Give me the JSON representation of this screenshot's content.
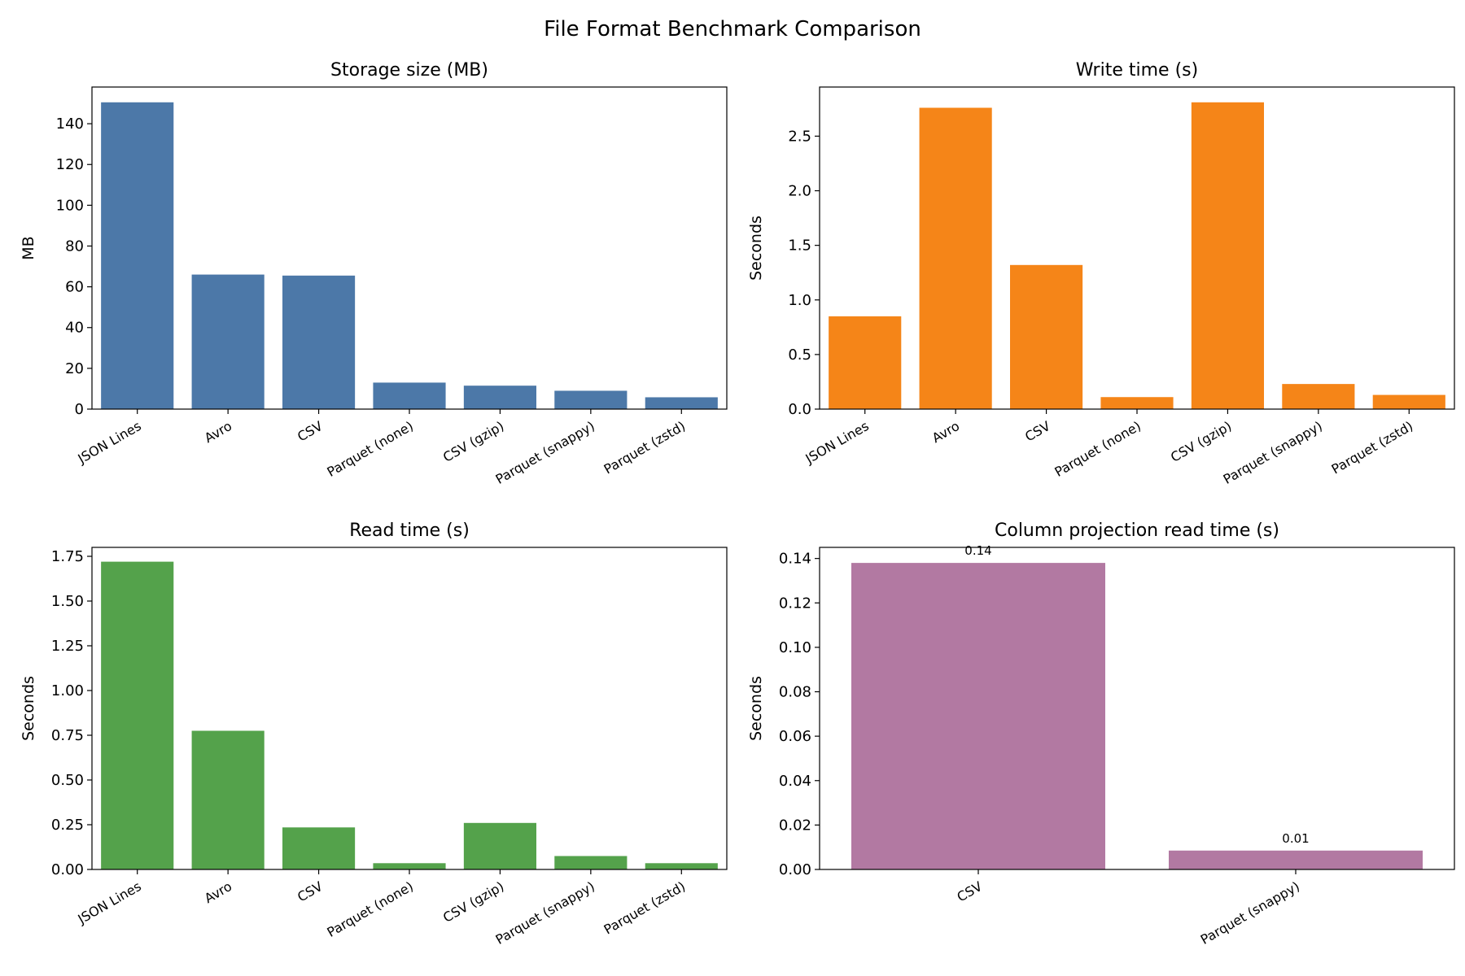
{
  "figure_title": "File Format Benchmark Comparison",
  "chart_data": [
    {
      "type": "bar",
      "title": "Storage size (MB)",
      "xlabel": "",
      "ylabel": "MB",
      "categories": [
        "JSON Lines",
        "Avro",
        "CSV",
        "Parquet (none)",
        "CSV (gzip)",
        "Parquet (snappy)",
        "Parquet (zstd)"
      ],
      "values": [
        150.5,
        66,
        65.5,
        13,
        11.5,
        9,
        5.8
      ],
      "ylim": [
        0,
        158
      ],
      "yticks": [
        0,
        20,
        40,
        60,
        80,
        100,
        120,
        140
      ],
      "ytick_decimals": 0,
      "color": "#4c78a8",
      "grid": false,
      "data_labels": false
    },
    {
      "type": "bar",
      "title": "Write time (s)",
      "xlabel": "",
      "ylabel": "Seconds",
      "categories": [
        "JSON Lines",
        "Avro",
        "CSV",
        "Parquet (none)",
        "CSV (gzip)",
        "Parquet (snappy)",
        "Parquet (zstd)"
      ],
      "values": [
        0.85,
        2.76,
        1.32,
        0.11,
        2.81,
        0.23,
        0.13
      ],
      "ylim": [
        0,
        2.95
      ],
      "yticks": [
        0.0,
        0.5,
        1.0,
        1.5,
        2.0,
        2.5
      ],
      "ytick_decimals": 1,
      "color": "#f58518",
      "grid": false,
      "data_labels": false
    },
    {
      "type": "bar",
      "title": "Read time (s)",
      "xlabel": "",
      "ylabel": "Seconds",
      "categories": [
        "JSON Lines",
        "Avro",
        "CSV",
        "Parquet (none)",
        "CSV (gzip)",
        "Parquet (snappy)",
        "Parquet (zstd)"
      ],
      "values": [
        1.72,
        0.775,
        0.235,
        0.035,
        0.26,
        0.075,
        0.035
      ],
      "ylim": [
        0,
        1.8
      ],
      "yticks": [
        0.0,
        0.25,
        0.5,
        0.75,
        1.0,
        1.25,
        1.5,
        1.75
      ],
      "ytick_decimals": 2,
      "color": "#54a24b",
      "grid": false,
      "data_labels": false
    },
    {
      "type": "bar",
      "title": "Column projection read time (s)",
      "xlabel": "",
      "ylabel": "Seconds",
      "categories": [
        "CSV",
        "Parquet (snappy)"
      ],
      "values": [
        0.138,
        0.0085
      ],
      "labels": [
        "0.14",
        "0.01"
      ],
      "ylim": [
        0,
        0.145
      ],
      "yticks": [
        0.0,
        0.02,
        0.04,
        0.06,
        0.08,
        0.1,
        0.12,
        0.14
      ],
      "ytick_decimals": 2,
      "color": "#b279a2",
      "grid": false,
      "data_labels": true
    }
  ]
}
